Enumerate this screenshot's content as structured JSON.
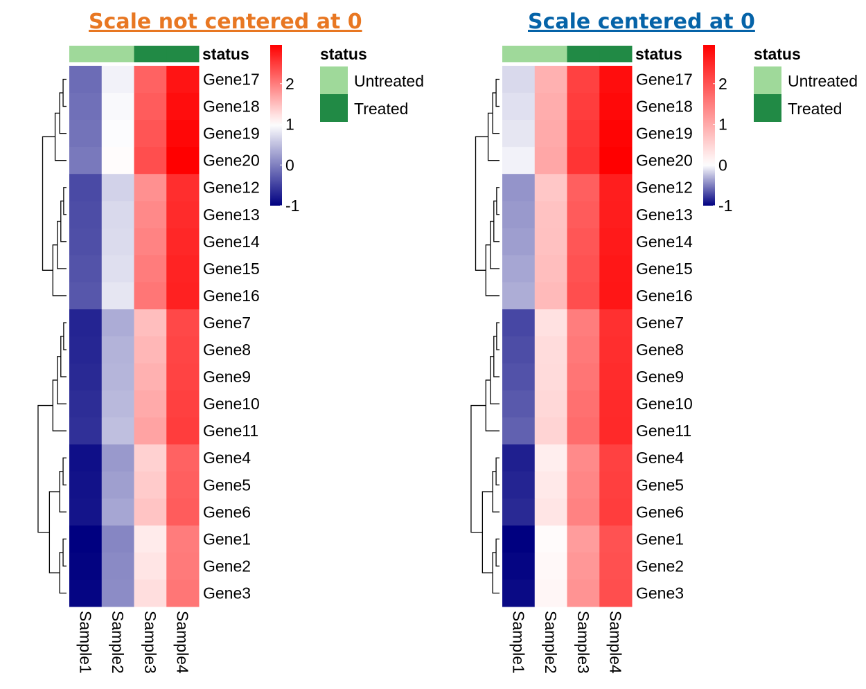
{
  "colors": {
    "low": "#000080",
    "mid": "#ffffff",
    "high": "#ff0000",
    "untreated": "#9FD99A",
    "treated": "#218A45",
    "left_title": "#E87722",
    "right_title": "#0563A8"
  },
  "chart_data": [
    {
      "type": "heatmap",
      "title": "Scale not centered at 0",
      "annotation": {
        "title": "status",
        "row_values": [
          "Untreated",
          "Untreated",
          "Treated",
          "Treated"
        ],
        "legend": [
          "Untreated",
          "Treated"
        ]
      },
      "columns": [
        "Sample1",
        "Sample2",
        "Sample3",
        "Sample4"
      ],
      "rows": [
        "Gene17",
        "Gene18",
        "Gene19",
        "Gene20",
        "Gene12",
        "Gene13",
        "Gene14",
        "Gene15",
        "Gene16",
        "Gene7",
        "Gene8",
        "Gene9",
        "Gene10",
        "Gene11",
        "Gene4",
        "Gene5",
        "Gene6",
        "Gene1",
        "Gene2",
        "Gene3"
      ],
      "values": [
        [
          -0.15,
          0.9,
          2.2,
          2.8
        ],
        [
          -0.12,
          0.95,
          2.25,
          2.85
        ],
        [
          -0.1,
          0.98,
          2.3,
          2.9
        ],
        [
          -0.05,
          1.02,
          2.35,
          2.95
        ],
        [
          -0.42,
          0.65,
          1.85,
          2.6
        ],
        [
          -0.4,
          0.7,
          1.9,
          2.62
        ],
        [
          -0.38,
          0.72,
          1.95,
          2.65
        ],
        [
          -0.35,
          0.75,
          2.0,
          2.68
        ],
        [
          -0.32,
          0.8,
          2.05,
          2.7
        ],
        [
          -0.72,
          0.35,
          1.5,
          2.4
        ],
        [
          -0.7,
          0.4,
          1.55,
          2.42
        ],
        [
          -0.68,
          0.42,
          1.6,
          2.44
        ],
        [
          -0.65,
          0.45,
          1.65,
          2.46
        ],
        [
          -0.62,
          0.5,
          1.7,
          2.48
        ],
        [
          -0.88,
          0.2,
          1.35,
          2.2
        ],
        [
          -0.86,
          0.25,
          1.4,
          2.22
        ],
        [
          -0.84,
          0.3,
          1.45,
          2.25
        ],
        [
          -1.0,
          0.05,
          1.15,
          2.0
        ],
        [
          -0.98,
          0.08,
          1.2,
          2.02
        ],
        [
          -0.96,
          0.1,
          1.25,
          2.05
        ]
      ],
      "color_scale": {
        "min": -1.0,
        "mid": 1.0,
        "max": 2.95
      },
      "legend_ticks": [
        "2",
        "1",
        "0",
        "-1"
      ],
      "legend_tick_values": [
        2,
        1,
        0,
        -1
      ]
    },
    {
      "type": "heatmap",
      "title": "Scale centered at 0",
      "annotation": {
        "title": "status",
        "row_values": [
          "Untreated",
          "Untreated",
          "Treated",
          "Treated"
        ],
        "legend": [
          "Untreated",
          "Treated"
        ]
      },
      "columns": [
        "Sample1",
        "Sample2",
        "Sample3",
        "Sample4"
      ],
      "rows": [
        "Gene17",
        "Gene18",
        "Gene19",
        "Gene20",
        "Gene12",
        "Gene13",
        "Gene14",
        "Gene15",
        "Gene16",
        "Gene7",
        "Gene8",
        "Gene9",
        "Gene10",
        "Gene11",
        "Gene4",
        "Gene5",
        "Gene6",
        "Gene1",
        "Gene2",
        "Gene3"
      ],
      "values": [
        [
          -0.15,
          0.9,
          2.2,
          2.8
        ],
        [
          -0.12,
          0.95,
          2.25,
          2.85
        ],
        [
          -0.1,
          0.98,
          2.3,
          2.9
        ],
        [
          -0.05,
          1.02,
          2.35,
          2.95
        ],
        [
          -0.42,
          0.65,
          1.85,
          2.6
        ],
        [
          -0.4,
          0.7,
          1.9,
          2.62
        ],
        [
          -0.38,
          0.72,
          1.95,
          2.65
        ],
        [
          -0.35,
          0.75,
          2.0,
          2.68
        ],
        [
          -0.32,
          0.8,
          2.05,
          2.7
        ],
        [
          -0.72,
          0.35,
          1.5,
          2.4
        ],
        [
          -0.7,
          0.4,
          1.55,
          2.42
        ],
        [
          -0.68,
          0.42,
          1.6,
          2.44
        ],
        [
          -0.65,
          0.45,
          1.65,
          2.46
        ],
        [
          -0.62,
          0.5,
          1.7,
          2.48
        ],
        [
          -0.88,
          0.2,
          1.35,
          2.2
        ],
        [
          -0.86,
          0.25,
          1.4,
          2.22
        ],
        [
          -0.84,
          0.3,
          1.45,
          2.25
        ],
        [
          -1.0,
          0.05,
          1.15,
          2.0
        ],
        [
          -0.98,
          0.08,
          1.2,
          2.02
        ],
        [
          -0.96,
          0.1,
          1.25,
          2.05
        ]
      ],
      "color_scale": {
        "min": -1.0,
        "mid": 0.0,
        "max": 2.95
      },
      "legend_ticks": [
        "2",
        "1",
        "0",
        "-1"
      ],
      "legend_tick_values": [
        2,
        1,
        0,
        -1
      ]
    }
  ]
}
